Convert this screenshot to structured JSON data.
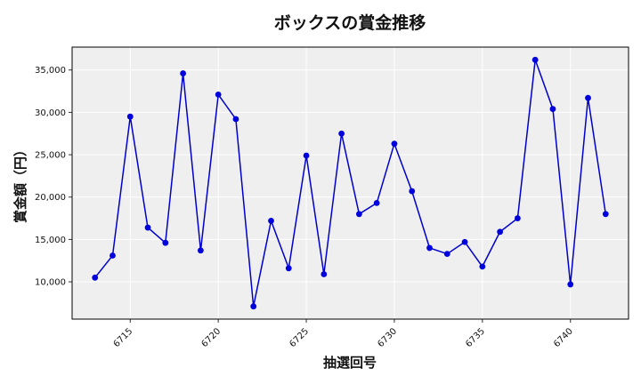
{
  "chart_data": {
    "type": "line",
    "title": "ボックスの賞金推移",
    "xlabel": "抽選回号",
    "ylabel": "賞金額（円）",
    "x": [
      6713,
      6714,
      6715,
      6716,
      6717,
      6718,
      6719,
      6720,
      6721,
      6722,
      6723,
      6724,
      6725,
      6726,
      6727,
      6728,
      6729,
      6730,
      6731,
      6732,
      6733,
      6734,
      6735,
      6736,
      6737,
      6738,
      6739,
      6740,
      6741,
      6742
    ],
    "series": [
      {
        "values": [
          10500,
          13100,
          29500,
          16400,
          14600,
          34600,
          13700,
          32100,
          29200,
          7100,
          17200,
          11600,
          24900,
          10900,
          27500,
          18000,
          19300,
          26300,
          20700,
          14000,
          13300,
          14700,
          11800,
          15900,
          17500,
          36200,
          30400,
          9700,
          31700,
          18000
        ]
      }
    ],
    "xlim": [
      6711.7,
      6743.3
    ],
    "ylim": [
      5600,
      37700
    ],
    "xticks": [
      6715,
      6720,
      6725,
      6730,
      6735,
      6740
    ],
    "xtick_labels": [
      "6715",
      "6720",
      "6725",
      "6730",
      "6735",
      "6740"
    ],
    "yticks": [
      10000,
      15000,
      20000,
      25000,
      30000,
      35000
    ],
    "ytick_labels": [
      "10,000",
      "15,000",
      "20,000",
      "25,000",
      "30,000",
      "35,000"
    ],
    "grid": true,
    "colors": {
      "line": "#0000cc",
      "marker": "#0000dd",
      "plot_background": "#efefef",
      "grid": "#ffffff",
      "frame": "#000000"
    }
  }
}
